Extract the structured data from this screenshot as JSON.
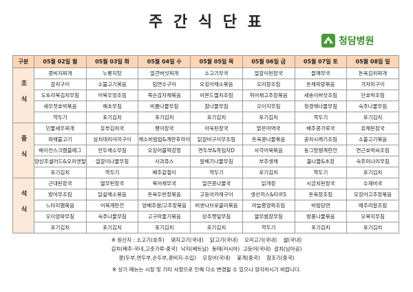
{
  "header": {
    "title": "주 간 식 단 표",
    "logo": "청담병원"
  },
  "table": {
    "corner": "구분",
    "columns": [
      "05월 02일 월",
      "05월 03일 화",
      "05월 04일 수",
      "05월 05일 목",
      "05월 06일 금",
      "05월 07일 토",
      "05월 08일 일"
    ],
    "sections": [
      {
        "label": "조식",
        "rows": [
          [
            "콩비지찌개",
            "누룽지탕",
            "얼큰버섯찌개",
            "소고기무국",
            "얼갈이된장국",
            "들깨무국",
            "돈육김치찌개"
          ],
          [
            "갈치구이",
            "소불고기볶음",
            "임연수구이",
            "오징어채소볶음",
            "오리장조림",
            "돈채피망볶음",
            "가자미구이"
          ],
          [
            "도토리묵김치무침",
            "어묵우엉조림",
            "죽순감자채볶음",
            "아몬드멸치조림",
            "쥐어채고추장볶음",
            "새송이버섯조림",
            "단호박조림"
          ],
          [
            "새우젓호박볶음",
            "해초무침",
            "비름나물무침",
            "참나물무침",
            "오이지무침",
            "청경채나물무침",
            "숙주나물무침"
          ],
          [
            "깍두기",
            "포기김치",
            "포기김치",
            "포기김치",
            "포기김치",
            "깍두기",
            "포기김치"
          ]
        ]
      },
      {
        "label": "중식",
        "rows": [
          [
            "민물새우찌개",
            "유부김치국",
            "팽이장국",
            "아욱된장국",
            "맑은미역국",
            "배추콩가루국",
            "유채된장국"
          ],
          [
            "파채불고기",
            "삼치데리야끼구이",
            "채소비빔밥&계란후라이",
            "닭갈비구이무조림",
            "돈육콩나물볶음",
            "꽁치시래기조림",
            "소불고기볶음"
          ],
          [
            "베이컨스크램블에그",
            "만두채소무침",
            "오징어불떡강정",
            "연두부&흑임자D",
            "사각어묵볶음",
            "동그랑땡계란전",
            "연근호박씨조림"
          ],
          [
            "양상추샐러드&오리엔탈D",
            "얼갈이나물무침",
            "사과쥬스",
            "알배기나물무침",
            "부추생채",
            "돌나물&초장",
            "숙주미나리무침"
          ],
          [
            "포기김치",
            "깍두기",
            "배추겉절이",
            "깍두기",
            "포기김치",
            "깍두기",
            "포기김치"
          ]
        ]
      },
      {
        "label": "석식",
        "rows": [
          [
            "근대된장국",
            "열무된장국",
            "북어채무국",
            "얼큰콩나물국",
            "닭개장",
            "시금치된장국",
            "수제비국"
          ],
          [
            "방어무조림",
            "닭살채소볶음",
            "돈육두반장볶음",
            "고등어카레구이",
            "생선까스&타르S",
            "돈육장조림",
            "오징어고추장볶음"
          ],
          [
            "느타리햄볶음",
            "어묵계란전",
            "양배추쌈/고추장볶음",
            "비엔나브로콜리볶음",
            "마늘쫑양파조림",
            "비빔당면",
            "메추리알조림"
          ],
          [
            "오이양파무침",
            "숙주나물무침",
            "고구마줄기볶음",
            "상추깻잎무침",
            "열무쌈장무침",
            "방풍나물볶음",
            "오복지무침"
          ],
          [
            "포기김치",
            "포기김치",
            "포기김치",
            "포기김치",
            "깍두기",
            "포기김치",
            "포기김치"
          ]
        ]
      }
    ]
  },
  "notes": [
    "※ 원산지 : 소고기(호주)    돼지고기(국내)    닭고기(국내)    오리고기(국내)    쌀(국내)",
    "김치(배추-국내,고춧가루-중국)  낙지(베트남)  동태(러시아)  고등어(국내)  갈치(남아공)",
    "콩(두부,연두부,순두부,콩비지-수입)    오징어(국내)    꽃게(중국)    참조기(중국)",
    "※ 상기 메뉴는 시장 및 기타 사정으로 인해 다소 변경될 수 있으니 양지하시기 바랍니다."
  ]
}
